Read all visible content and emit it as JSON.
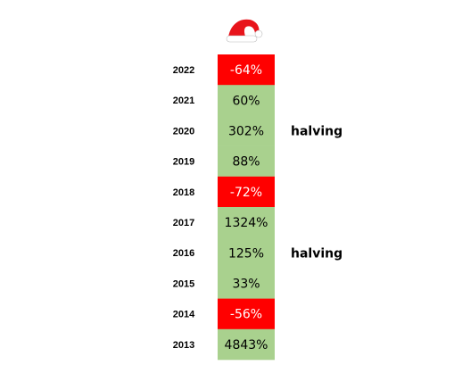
{
  "table": {
    "rows": [
      {
        "year": "2022",
        "change": "-64%",
        "fill": "#ff0000",
        "text_color": "#ffffff"
      },
      {
        "year": "2021",
        "change": "60%",
        "fill": "#a9d18e",
        "text_color": "#000000"
      },
      {
        "year": "2020",
        "change": "302%",
        "fill": "#a9d18e",
        "text_color": "#000000",
        "note": "halving"
      },
      {
        "year": "2019",
        "change": "88%",
        "fill": "#a9d18e",
        "text_color": "#000000"
      },
      {
        "year": "2018",
        "change": "-72%",
        "fill": "#ff0000",
        "text_color": "#ffffff"
      },
      {
        "year": "2017",
        "change": "1324%",
        "fill": "#a9d18e",
        "text_color": "#000000"
      },
      {
        "year": "2016",
        "change": "125%",
        "fill": "#a9d18e",
        "text_color": "#000000",
        "note": "halving"
      },
      {
        "year": "2015",
        "change": "33%",
        "fill": "#a9d18e",
        "text_color": "#000000"
      },
      {
        "year": "2014",
        "change": "-56%",
        "fill": "#ff0000",
        "text_color": "#ffffff"
      },
      {
        "year": "2013",
        "change": "4843%",
        "fill": "#a9d18e",
        "text_color": "#000000"
      }
    ]
  }
}
